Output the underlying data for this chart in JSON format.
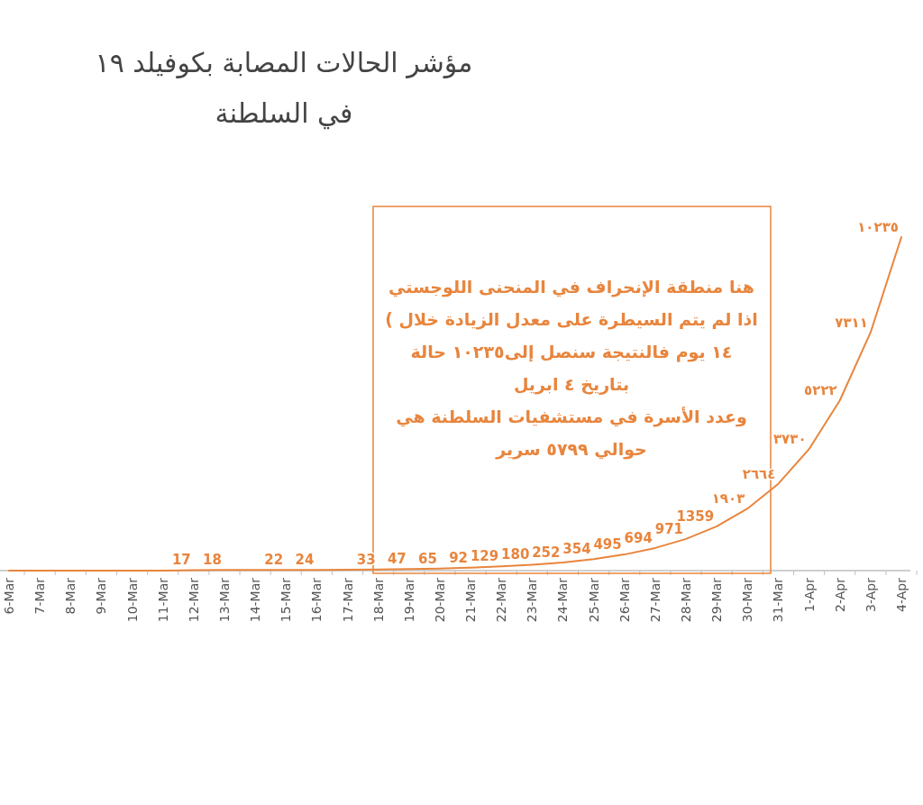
{
  "chart_data": {
    "type": "line",
    "title": "مؤشر الحالات المصابة بكوفيلد ١٩",
    "subtitle": "في السلطنة",
    "categories": [
      "6-Mar",
      "7-Mar",
      "8-Mar",
      "9-Mar",
      "10-Mar",
      "11-Mar",
      "12-Mar",
      "13-Mar",
      "14-Mar",
      "15-Mar",
      "16-Mar",
      "17-Mar",
      "18-Mar",
      "19-Mar",
      "20-Mar",
      "21-Mar",
      "22-Mar",
      "23-Mar",
      "24-Mar",
      "25-Mar",
      "26-Mar",
      "27-Mar",
      "28-Mar",
      "29-Mar",
      "30-Mar",
      "31-Mar",
      "1-Apr",
      "2-Apr",
      "3-Apr",
      "4-Apr"
    ],
    "values": [
      0,
      0,
      0,
      0,
      0,
      0,
      17,
      18,
      null,
      22,
      24,
      null,
      33,
      47,
      65,
      92,
      129,
      180,
      252,
      354,
      495,
      694,
      971,
      1359,
      1903,
      2664,
      3730,
      5222,
      7311,
      10235
    ],
    "value_labels": [
      null,
      null,
      null,
      null,
      null,
      null,
      "17",
      "18",
      null,
      "22",
      "24",
      null,
      "33",
      "47",
      "65",
      "92",
      "129",
      "180",
      "252",
      "354",
      "495",
      "694",
      "971",
      "1359",
      "١٩٠٣",
      "٢٦٦٤",
      "٣٧٣٠",
      "٥٢٢٢",
      "٧٣١١",
      "١٠٢٣٥"
    ],
    "color": "#e8853d",
    "annotations": [
      "هنا منطقة الإنحراف في المنحنى اللوجستي",
      "اذا لم يتم السيطرة على معدل الزيادة خلال )",
      "١٤ يوم فالنتيجة سنصل إلى١٠٢٣٥ حالة",
      "بتاريخ ٤ ابريل",
      "وعدد الأسرة في مستشفيات السلطنة هي",
      "حوالي ٥٧٩٩ سرير"
    ]
  }
}
